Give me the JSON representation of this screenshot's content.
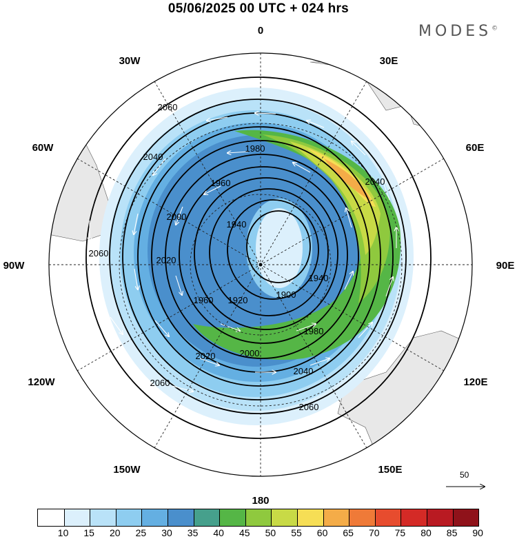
{
  "title": "05/06/2025  00 UTC  + 024 hrs",
  "brand": "MODES",
  "brand_mark": "©",
  "longitude_labels": [
    "0",
    "30E",
    "60E",
    "90E",
    "120E",
    "150E",
    "180",
    "150W",
    "120W",
    "90W",
    "60W",
    "30W"
  ],
  "contour_labels": [
    "2060",
    "2040",
    "2000",
    "1980",
    "1960",
    "1940",
    "2020",
    "1900",
    "1920",
    "1940",
    "1960",
    "1980",
    "2000",
    "2020",
    "2040",
    "2060",
    "2060",
    "2040",
    "2060"
  ],
  "reference_vector": "50",
  "colorbar": {
    "ticks": [
      "10",
      "15",
      "20",
      "25",
      "30",
      "35",
      "40",
      "45",
      "50",
      "55",
      "60",
      "65",
      "70",
      "75",
      "80",
      "85",
      "90"
    ],
    "colors": [
      "#ffffff",
      "#dcf0fc",
      "#b9e2f8",
      "#8ecdf0",
      "#64afe2",
      "#4a8fcc",
      "#46a08c",
      "#55b646",
      "#8fc93e",
      "#c8da46",
      "#f6de55",
      "#f4ac48",
      "#ef7a38",
      "#e74c2e",
      "#d42a26",
      "#b91a22",
      "#8f121a"
    ]
  }
}
